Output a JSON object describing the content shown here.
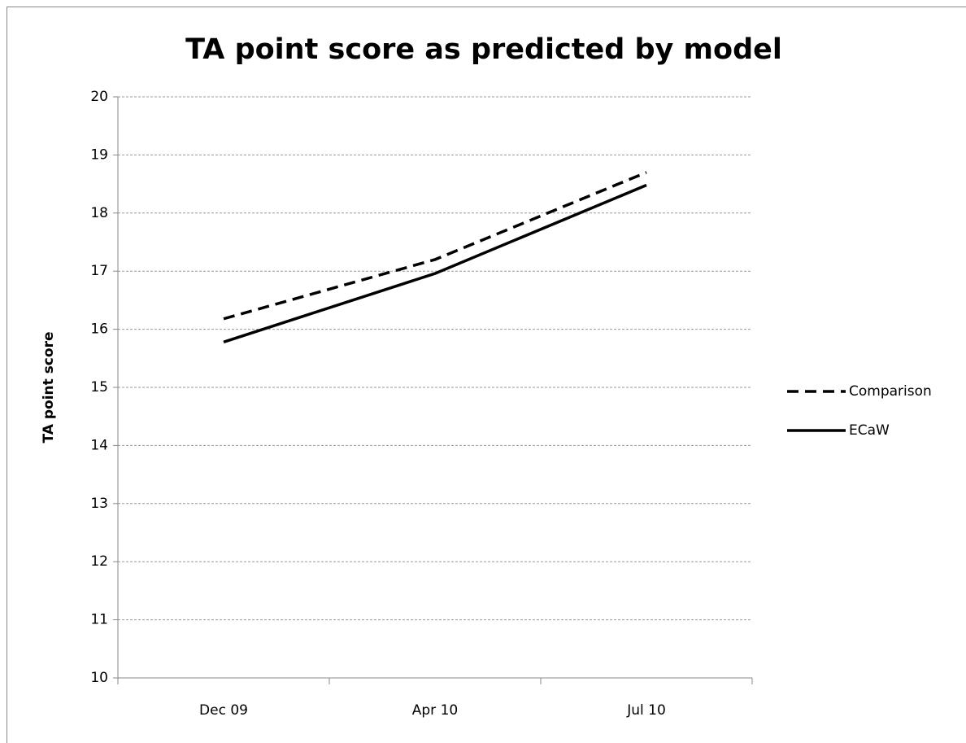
{
  "chart_data": {
    "type": "line",
    "title": "TA point score as predicted by model",
    "y_label": "TA point score",
    "categories": [
      "Dec 09",
      "Apr 10",
      "Jul 10"
    ],
    "series": [
      {
        "name": "Comparison",
        "color": "#000000",
        "dashed": true,
        "values": [
          16.18,
          17.2,
          18.7
        ]
      },
      {
        "name": "ECaW",
        "color": "#000000",
        "dashed": false,
        "values": [
          15.78,
          16.96,
          18.48
        ]
      }
    ],
    "ylim": [
      10,
      20
    ],
    "yticks": [
      10,
      11,
      12,
      13,
      14,
      15,
      16,
      17,
      18,
      19,
      20
    ],
    "grid": true,
    "legend": "right"
  }
}
